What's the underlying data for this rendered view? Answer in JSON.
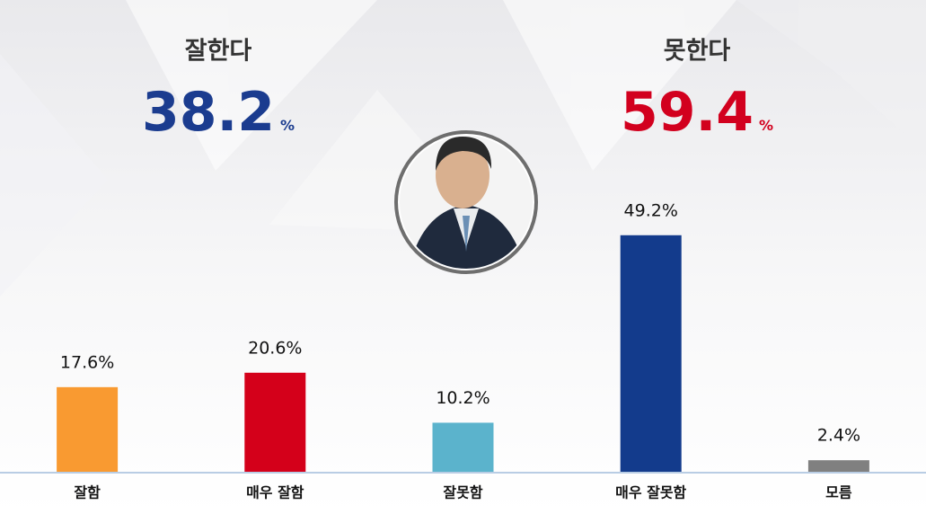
{
  "chart_data": {
    "type": "bar",
    "summary": [
      {
        "label": "잘한다",
        "value": 38.2,
        "unit": "%",
        "color": "#1b3c8f"
      },
      {
        "label": "못한다",
        "value": 59.4,
        "unit": "%",
        "color": "#d2001e"
      }
    ],
    "categories": [
      "잘함",
      "매우 잘함",
      "잘못함",
      "매우 잘못함",
      "모름"
    ],
    "values": [
      17.6,
      20.6,
      10.2,
      49.2,
      2.4
    ],
    "value_labels": [
      "17.6%",
      "20.6%",
      "10.2%",
      "49.2%",
      "2.4%"
    ],
    "colors": [
      "#f99a31",
      "#d4001a",
      "#5bb3cc",
      "#133b8c",
      "#808080"
    ]
  }
}
